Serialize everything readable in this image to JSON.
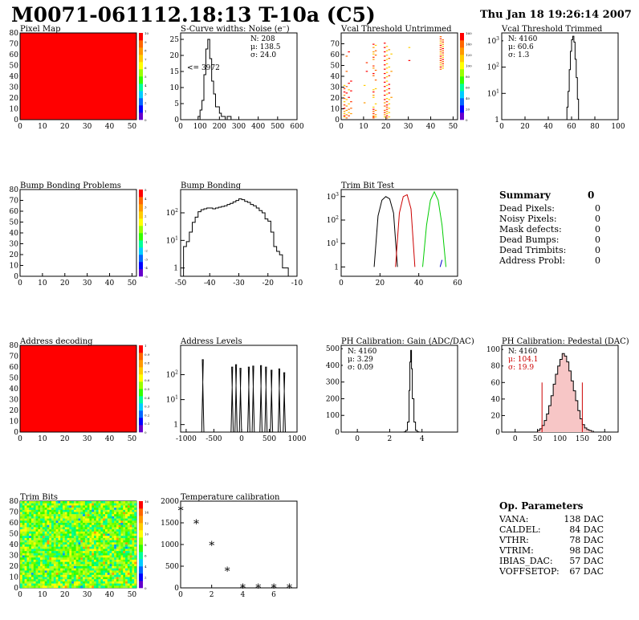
{
  "header": {
    "title": "M0071-061112.18:13 T-10a (C5)",
    "date": "Thu Jan 18 19:26:14 2007"
  },
  "colors": {
    "fill_red": "#ff0000",
    "palette": [
      "#6600cc",
      "#0000ff",
      "#0066ff",
      "#00ccff",
      "#00ff99",
      "#33ff00",
      "#99ff00",
      "#ffff00",
      "#ffcc00",
      "#ff9900",
      "#ff6600",
      "#ff0000"
    ],
    "pedestal_red": "#cc0000",
    "trim_red": "#cc0000",
    "trim_green": "#00cc00",
    "trim_blue": "#0000cc"
  },
  "chart_data": [
    {
      "id": "pixel-map",
      "type": "heatmap",
      "title": "Pixel Map",
      "xlim": [
        0,
        52
      ],
      "ylim": [
        0,
        80
      ],
      "xticks": [
        "0",
        "10",
        "20",
        "30",
        "40",
        "50"
      ],
      "yticks": [
        "0",
        "10",
        "20",
        "30",
        "40",
        "50",
        "60",
        "70",
        "80"
      ],
      "fill": "uniform-red",
      "palette_ticks": [
        "10",
        "9",
        "8",
        "7",
        "6",
        "5",
        "4",
        "3",
        "2",
        "1",
        "0"
      ]
    },
    {
      "id": "scurve-noise",
      "type": "bar",
      "title": "S-Curve widths: Noise (e⁻)",
      "xlim": [
        0,
        600
      ],
      "ylim": [
        0,
        27
      ],
      "xticks": [
        "0",
        "100",
        "200",
        "300",
        "400",
        "500",
        "600"
      ],
      "yticks": [
        "0",
        "5",
        "10",
        "15",
        "20",
        "25"
      ],
      "stats": [
        "N:  208",
        "μ: 138.5",
        "σ: 24.0"
      ],
      "annotation": "<= 3972",
      "x": [
        80,
        90,
        100,
        110,
        120,
        130,
        140,
        150,
        160,
        170,
        180,
        190,
        200,
        210,
        220,
        230,
        240,
        250,
        260,
        270
      ],
      "values": [
        0,
        1,
        3,
        6,
        14,
        22,
        25,
        19,
        12,
        8,
        4,
        4,
        2,
        1,
        1,
        0,
        1,
        1,
        0,
        0
      ]
    },
    {
      "id": "vcal-untrimmed",
      "type": "heatmap",
      "title": "Vcal Threshold Untrimmed",
      "xlim": [
        0,
        52
      ],
      "ylim": [
        0,
        80
      ],
      "xticks": [
        "0",
        "10",
        "20",
        "30",
        "40",
        "50"
      ],
      "yticks": [
        "0",
        "10",
        "20",
        "30",
        "40",
        "50",
        "60",
        "70"
      ],
      "palette_ticks": [
        "160",
        "140",
        "120",
        "100",
        "80",
        "60",
        "40",
        "20",
        "0"
      ],
      "columns": [
        {
          "x": 1,
          "rows": [
            2,
            3,
            5,
            7,
            10,
            13,
            16,
            19,
            22,
            25,
            28,
            31
          ]
        },
        {
          "x": 2,
          "rows": [
            1,
            4,
            8,
            12,
            18,
            24,
            30,
            44,
            58
          ]
        },
        {
          "x": 3,
          "rows": [
            3,
            6,
            9,
            14,
            20,
            27,
            33,
            62
          ]
        },
        {
          "x": 4,
          "rows": [
            5,
            10,
            16,
            26,
            35
          ]
        },
        {
          "x": 10,
          "rows": [
            15,
            31
          ]
        },
        {
          "x": 11,
          "rows": [
            44,
            52
          ]
        },
        {
          "x": 14,
          "rows": [
            1,
            2,
            3,
            5,
            7,
            9,
            11,
            20,
            22,
            25,
            27,
            40,
            42,
            47,
            49,
            55,
            57,
            60,
            62,
            66,
            69
          ]
        },
        {
          "x": 15,
          "rows": [
            2,
            4,
            8,
            14,
            28,
            36,
            45,
            59,
            63,
            68
          ]
        },
        {
          "x": 19,
          "rows": [
            2,
            4,
            6,
            8,
            12,
            15,
            18,
            22,
            26,
            30,
            34,
            38,
            42,
            46,
            50,
            54,
            58,
            62,
            66,
            70
          ]
        },
        {
          "x": 20,
          "rows": [
            1,
            3,
            5,
            7,
            9,
            11,
            13,
            16,
            19,
            23,
            27,
            31,
            35,
            39,
            43,
            47,
            51,
            55,
            59,
            63,
            67
          ]
        },
        {
          "x": 21,
          "rows": [
            2,
            6,
            10,
            14,
            18,
            24,
            28,
            32,
            40,
            48,
            56,
            64
          ]
        },
        {
          "x": 22,
          "rows": [
            20,
            44,
            60
          ]
        },
        {
          "x": 30,
          "rows": [
            54,
            66
          ]
        },
        {
          "x": 44,
          "rows": [
            46,
            48,
            50,
            52,
            54,
            56,
            58,
            60,
            62,
            64,
            66,
            68,
            70,
            72,
            74,
            76
          ]
        },
        {
          "x": 45,
          "rows": [
            47,
            49,
            51,
            53,
            55,
            57,
            59,
            61,
            63,
            65,
            67,
            69,
            71,
            73
          ]
        }
      ]
    },
    {
      "id": "vcal-trimmed",
      "type": "bar",
      "title": "Vcal Threshold Trimmed",
      "yscale": "log",
      "xlim": [
        0,
        100
      ],
      "ylim_log": [
        1,
        2000
      ],
      "xticks": [
        "0",
        "20",
        "40",
        "60",
        "80",
        "100"
      ],
      "ytick_vals": [
        1,
        10,
        100,
        1000
      ],
      "stats": [
        "N: 4160",
        "μ: 60.6",
        "σ:  1.3"
      ],
      "x": [
        55,
        56,
        57,
        58,
        59,
        60,
        61,
        62,
        63,
        64,
        65,
        66,
        67
      ],
      "values": [
        1,
        3,
        12,
        80,
        400,
        1100,
        1500,
        900,
        200,
        40,
        6,
        1,
        1
      ]
    },
    {
      "id": "bump-problems",
      "type": "heatmap",
      "title": "Bump Bonding Problems",
      "xlim": [
        0,
        52
      ],
      "ylim": [
        0,
        80
      ],
      "xticks": [
        "0",
        "10",
        "20",
        "30",
        "40",
        "50"
      ],
      "yticks": [
        "0",
        "10",
        "20",
        "30",
        "40",
        "50",
        "60",
        "70",
        "80"
      ],
      "fill": "empty",
      "palette_ticks": [
        "5",
        "4",
        "3",
        "2",
        "1",
        "0",
        "-1",
        "-2",
        "-3",
        "-4",
        "-5"
      ]
    },
    {
      "id": "bump-bonding",
      "type": "bar",
      "title": "Bump Bonding",
      "yscale": "log",
      "xlim": [
        -50,
        -10
      ],
      "ylim_log": [
        0.5,
        700
      ],
      "xticks": [
        "-50",
        "-40",
        "-30",
        "-20",
        "-10"
      ],
      "ytick_vals": [
        1,
        10,
        100
      ],
      "x": [
        -49,
        -48,
        -47,
        -46,
        -45,
        -44,
        -43,
        -42,
        -41,
        -40,
        -39,
        -38,
        -37,
        -36,
        -35,
        -34,
        -33,
        -32,
        -31,
        -30,
        -29,
        -28,
        -27,
        -26,
        -25,
        -24,
        -23,
        -22,
        -21,
        -20,
        -19,
        -18,
        -17,
        -16,
        -15,
        -14
      ],
      "values": [
        6,
        9,
        20,
        45,
        70,
        110,
        130,
        140,
        150,
        150,
        140,
        150,
        160,
        170,
        180,
        200,
        220,
        250,
        280,
        320,
        300,
        260,
        240,
        200,
        180,
        150,
        120,
        100,
        60,
        50,
        20,
        6,
        4,
        3,
        1,
        1
      ]
    },
    {
      "id": "trim-bit-test",
      "type": "line",
      "title": "Trim Bit Test",
      "yscale": "log",
      "xlim": [
        0,
        60
      ],
      "ylim_log": [
        0.4,
        2000
      ],
      "xticks": [
        "0",
        "20",
        "40",
        "60"
      ],
      "ytick_vals": [
        1,
        10,
        100,
        1000
      ],
      "series": [
        {
          "color": "#000000",
          "x": [
            17,
            19,
            21,
            23,
            25,
            27,
            29
          ],
          "values": [
            1,
            150,
            700,
            1000,
            800,
            200,
            1
          ]
        },
        {
          "color": "#cc0000",
          "x": [
            28,
            30,
            32,
            34,
            36,
            38
          ],
          "values": [
            1,
            200,
            1000,
            1200,
            300,
            1
          ]
        },
        {
          "color": "#00cc00",
          "x": [
            42,
            44,
            46,
            48,
            50,
            52,
            54
          ],
          "values": [
            1,
            60,
            700,
            1600,
            700,
            60,
            1
          ]
        },
        {
          "color": "#0000cc",
          "x": [
            51,
            52
          ],
          "values": [
            1,
            2
          ]
        }
      ]
    },
    {
      "id": "address-decoding",
      "type": "heatmap",
      "title": "Address decoding",
      "xlim": [
        0,
        52
      ],
      "ylim": [
        0,
        80
      ],
      "xticks": [
        "0",
        "10",
        "20",
        "30",
        "40",
        "50"
      ],
      "yticks": [
        "0",
        "10",
        "20",
        "30",
        "40",
        "50",
        "60",
        "70",
        "80"
      ],
      "fill": "uniform-red",
      "palette_ticks": [
        "1",
        "0.9",
        "0.8",
        "0.7",
        "0.6",
        "0.5",
        "0.4",
        "0.3",
        "0.2",
        "0.1",
        "0"
      ]
    },
    {
      "id": "address-levels",
      "type": "bar",
      "title": "Address Levels",
      "yscale": "log",
      "xlim": [
        -1100,
        1000
      ],
      "ylim_log": [
        0.5,
        1500
      ],
      "xticks": [
        "-1000",
        "-500",
        "0",
        "500",
        "1000"
      ],
      "ytick_vals": [
        1,
        10,
        100
      ],
      "x": [
        -700,
        -170,
        -100,
        -20,
        130,
        210,
        350,
        440,
        540,
        680,
        770
      ],
      "values": [
        400,
        200,
        250,
        180,
        200,
        220,
        230,
        200,
        150,
        170,
        120
      ]
    },
    {
      "id": "ph-gain",
      "type": "bar",
      "title": "PH Calibration: Gain (ADC/DAC)",
      "xlim": [
        -1,
        6.2
      ],
      "ylim": [
        0,
        520
      ],
      "xticks": [
        "0",
        "2",
        "4"
      ],
      "yticks": [
        "0",
        "100",
        "200",
        "300",
        "400",
        "500"
      ],
      "stats": [
        "N: 4160",
        "μ: 3.29",
        "σ: 0.09"
      ],
      "x": [
        2.9,
        3.0,
        3.1,
        3.2,
        3.25,
        3.3,
        3.35,
        3.4,
        3.5,
        3.6,
        3.7
      ],
      "values": [
        2,
        10,
        60,
        250,
        420,
        490,
        380,
        200,
        60,
        10,
        2
      ]
    },
    {
      "id": "ph-pedestal",
      "type": "bar",
      "title": "PH Calibration: Pedestal (DAC)",
      "xlim": [
        -30,
        230
      ],
      "ylim": [
        0,
        105
      ],
      "xticks": [
        "0",
        "50",
        "100",
        "150",
        "200"
      ],
      "yticks": [
        "0",
        "20",
        "40",
        "60",
        "80",
        "100"
      ],
      "stats": [
        "N: 4160",
        "μ: 104.1",
        "σ: 19.9"
      ],
      "x": [
        50,
        55,
        60,
        65,
        70,
        75,
        80,
        85,
        90,
        95,
        100,
        105,
        110,
        115,
        120,
        125,
        130,
        135,
        140,
        145,
        150,
        155,
        160,
        165,
        170
      ],
      "values": [
        2,
        4,
        8,
        14,
        22,
        32,
        44,
        58,
        70,
        80,
        88,
        95,
        92,
        85,
        74,
        62,
        50,
        38,
        26,
        16,
        9,
        5,
        3,
        2,
        1
      ],
      "cut_lines": [
        60,
        150
      ]
    },
    {
      "id": "trim-bits",
      "type": "heatmap",
      "title": "Trim Bits",
      "xlim": [
        0,
        52
      ],
      "ylim": [
        0,
        80
      ],
      "xticks": [
        "0",
        "10",
        "20",
        "30",
        "40",
        "50"
      ],
      "yticks": [
        "0",
        "10",
        "20",
        "30",
        "40",
        "50",
        "60",
        "70",
        "80"
      ],
      "fill": "noise-green",
      "palette_ticks": [
        "16",
        "14",
        "12",
        "10",
        "8",
        "6",
        "4",
        "2",
        "0"
      ]
    },
    {
      "id": "temperature-calibration",
      "type": "scatter",
      "title": "Temperature calibration",
      "xlim": [
        0,
        7.5
      ],
      "ylim": [
        0,
        2000
      ],
      "xticks": [
        "0",
        "2",
        "4",
        "6"
      ],
      "yticks": [
        "0",
        "500",
        "1000",
        "1500",
        "2000"
      ],
      "x": [
        0,
        1,
        2,
        3,
        4,
        5,
        6,
        7
      ],
      "values": [
        1840,
        1540,
        1040,
        440,
        55,
        55,
        55,
        55
      ]
    }
  ],
  "summary": {
    "title": "Summary",
    "title_value": "0",
    "rows": [
      {
        "label": "Dead Pixels:",
        "value": "0"
      },
      {
        "label": "Noisy Pixels:",
        "value": "0"
      },
      {
        "label": "Mask defects:",
        "value": "0"
      },
      {
        "label": "Dead Bumps:",
        "value": "0"
      },
      {
        "label": "Dead Trimbits:",
        "value": "0"
      },
      {
        "label": "Address Probl:",
        "value": "0"
      }
    ]
  },
  "params": {
    "title": "Op. Parameters",
    "rows": [
      {
        "label": "VANA:",
        "value": "138 DAC"
      },
      {
        "label": "CALDEL:",
        "value": "84 DAC"
      },
      {
        "label": "VTHR:",
        "value": "78 DAC"
      },
      {
        "label": "VTRIM:",
        "value": "98 DAC"
      },
      {
        "label": "IBIAS_DAC:",
        "value": "57 DAC"
      },
      {
        "label": "VOFFSETOP:",
        "value": "67 DAC"
      }
    ]
  }
}
